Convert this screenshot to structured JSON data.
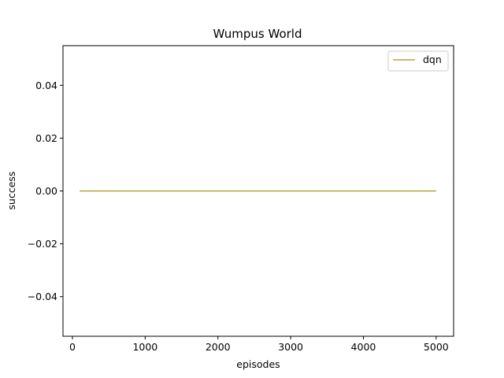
{
  "chart_data": {
    "type": "line",
    "title": "Wumpus World",
    "xlabel": "episodes",
    "ylabel": "success",
    "xlim": [
      -130,
      5240
    ],
    "ylim": [
      -0.055,
      0.055
    ],
    "x_ticks": [
      0,
      1000,
      2000,
      3000,
      4000,
      5000
    ],
    "x_tick_labels": [
      "0",
      "1000",
      "2000",
      "3000",
      "4000",
      "5000"
    ],
    "y_ticks": [
      -0.04,
      -0.02,
      0.0,
      0.02,
      0.04
    ],
    "y_tick_labels": [
      "−0.04",
      "−0.02",
      "0.00",
      "0.02",
      "0.04"
    ],
    "grid": false,
    "legend": "upper-right",
    "series": [
      {
        "name": "dqn",
        "color": "#a89028",
        "x": [
          100,
          5000
        ],
        "y": [
          0,
          0
        ]
      }
    ]
  }
}
